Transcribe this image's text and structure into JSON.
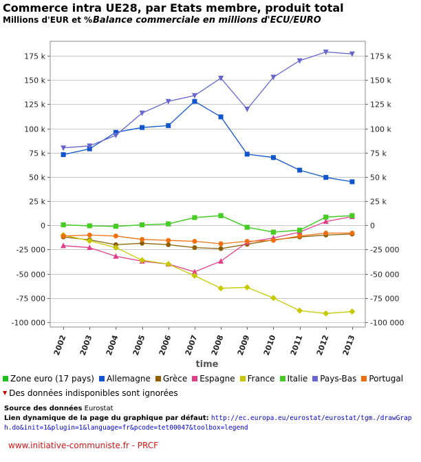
{
  "header": {
    "title": "Commerce intra UE28, par Etats membre, produit total",
    "units": "Millions d'EUR et %",
    "subtitle": "Balance commerciale en millions d'ECU/EURO"
  },
  "chart_data": {
    "type": "line",
    "xlabel": "time",
    "ylabel": "",
    "categories": [
      "2002",
      "2003",
      "2004",
      "2005",
      "2006",
      "2007",
      "2008",
      "2009",
      "2010",
      "2011",
      "2012",
      "2013"
    ],
    "ylim": [
      -105000,
      190000
    ],
    "left_ticks": [
      {
        "value": 175000,
        "label": "175 k"
      },
      {
        "value": 150000,
        "label": "150 k"
      },
      {
        "value": 125000,
        "label": "125 k"
      },
      {
        "value": 100000,
        "label": "100 k"
      },
      {
        "value": 75000,
        "label": "75 k"
      },
      {
        "value": 50000,
        "label": "50 k"
      },
      {
        "value": 25000,
        "label": "25 k"
      },
      {
        "value": 0,
        "label": "0"
      },
      {
        "value": -25000,
        "label": "-25 000"
      },
      {
        "value": -50000,
        "label": "-50 000"
      },
      {
        "value": -75000,
        "label": "-75 000"
      },
      {
        "value": -100000,
        "label": "-100 000"
      }
    ],
    "right_ticks": [
      {
        "value": 175000,
        "label": "175 k"
      },
      {
        "value": 150000,
        "label": "150 k"
      },
      {
        "value": 125000,
        "label": "125 k"
      },
      {
        "value": 100000,
        "label": "100 k"
      },
      {
        "value": 75000,
        "label": "75 k"
      },
      {
        "value": 50000,
        "label": "50 k"
      },
      {
        "value": 25000,
        "label": "25 k"
      },
      {
        "value": 0,
        "label": "0"
      },
      {
        "value": -25000,
        "label": "-25 000"
      },
      {
        "value": -50000,
        "label": "-50 000"
      },
      {
        "value": -75000,
        "label": "-75 000"
      },
      {
        "value": -100000,
        "label": "-100 000"
      }
    ],
    "grid": true,
    "legend_position": "bottom",
    "series": [
      {
        "name": "Zone euro (17 pays)",
        "color": "#22bb22",
        "marker": "square",
        "values": [
          500,
          -500,
          -1000,
          500,
          1500,
          8000,
          10000,
          -2000,
          -7000,
          -5000,
          8500,
          10000
        ]
      },
      {
        "name": "Allemagne",
        "color": "#1155cc",
        "marker": "square",
        "values": [
          73000,
          79000,
          96000,
          101000,
          103000,
          128000,
          112000,
          73500,
          70000,
          57000,
          49500,
          45000
        ]
      },
      {
        "name": "Grèce",
        "color": "#8b5e00",
        "marker": "circle",
        "values": [
          -12000,
          -15000,
          -20000,
          -18500,
          -20000,
          -23000,
          -24000,
          -19500,
          -15000,
          -12000,
          -10000,
          -9000
        ]
      },
      {
        "name": "Espagne",
        "color": "#e0408a",
        "marker": "triangle-up",
        "values": [
          -21000,
          -23000,
          -32000,
          -37000,
          -40000,
          -48000,
          -37000,
          -17500,
          -13000,
          -7000,
          4000,
          9000
        ]
      },
      {
        "name": "France",
        "color": "#c8c800",
        "marker": "diamond",
        "values": [
          -10000,
          -16000,
          -23000,
          -36000,
          -40000,
          -52000,
          -65000,
          -64000,
          -75000,
          -88000,
          -91000,
          -89000
        ]
      },
      {
        "name": "Italie",
        "color": "#44cc22",
        "marker": "square",
        "values": [
          500,
          -500,
          -1000,
          500,
          1500,
          8000,
          10000,
          -2000,
          -7000,
          -5000,
          8500,
          10000
        ]
      },
      {
        "name": "Pays-Bas",
        "color": "#6666cc",
        "marker": "triangle-down",
        "values": [
          80000,
          82000,
          93000,
          116000,
          128000,
          134000,
          152000,
          120000,
          153000,
          170000,
          179000,
          177000
        ]
      },
      {
        "name": "Portugal",
        "color": "#f07010",
        "marker": "circle",
        "values": [
          -11000,
          -10000,
          -11000,
          -14500,
          -15500,
          -16500,
          -19000,
          -16500,
          -15500,
          -11000,
          -8000,
          -8000
        ]
      }
    ]
  },
  "note": "Des données indisponibles sont ignorées",
  "source": {
    "label": "Source des données",
    "value": "Eurostat"
  },
  "dynamic_link": {
    "label": "Lien dynamique de la page du graphique par défaut:",
    "url": "http://ec.europa.eu/eurostat/eurostat/tgm./drawGraph.do&init=1&plugin=1&language=fr&pcode=tet00047&toolbox=legend"
  },
  "footer": "www.initiative-communiste.fr - PRCF"
}
